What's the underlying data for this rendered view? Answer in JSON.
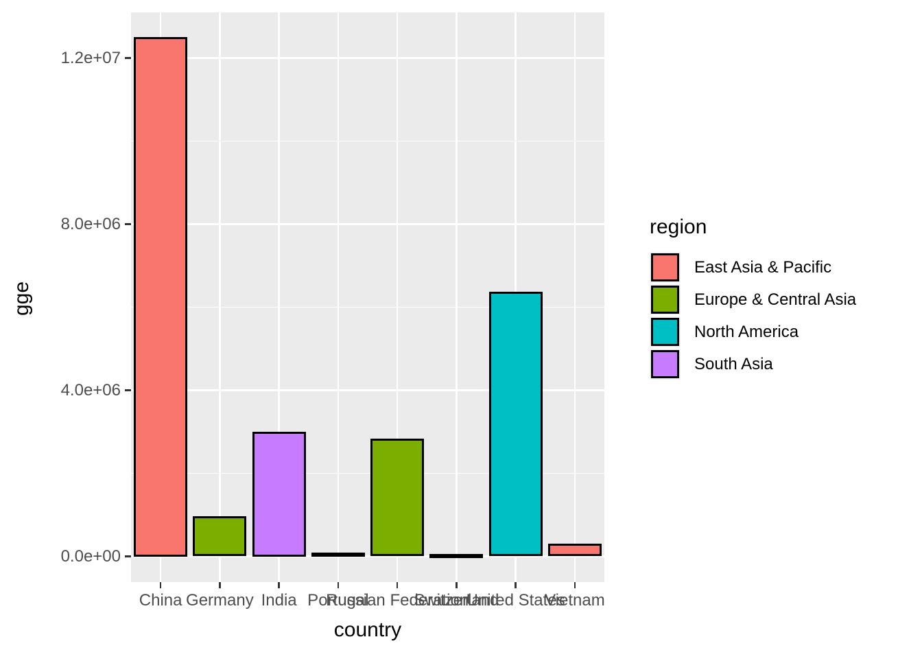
{
  "chart_data": {
    "type": "bar",
    "title": "",
    "xlabel": "country",
    "ylabel": "gge",
    "categories": [
      "China",
      "Germany",
      "India",
      "Portugal",
      "Russian Federation",
      "Switzerland",
      "United States",
      "Vietnam"
    ],
    "values": [
      12500000,
      960000,
      3000000,
      90000,
      2830000,
      55000,
      6380000,
      300000
    ],
    "bar_regions": [
      "East Asia & Pacific",
      "Europe & Central Asia",
      "South Asia",
      "Europe & Central Asia",
      "Europe & Central Asia",
      "Europe & Central Asia",
      "North America",
      "East Asia & Pacific"
    ],
    "region_colors": {
      "East Asia & Pacific": "#F8766D",
      "Europe & Central Asia": "#7CAE00",
      "North America": "#00BFC4",
      "South Asia": "#C77CFF"
    },
    "y_axis": {
      "ticks": [
        {
          "value": 0,
          "label": "0.0e+00"
        },
        {
          "value": 4000000,
          "label": "4.0e+06"
        },
        {
          "value": 8000000,
          "label": "8.0e+06"
        },
        {
          "value": 12000000,
          "label": "1.2e+07"
        }
      ],
      "minor_ticks": [
        2000000,
        6000000,
        10000000
      ],
      "range": [
        -620000,
        13110000
      ],
      "grid": true
    },
    "legend": {
      "title": "region",
      "position": "right",
      "entries": [
        {
          "label": "East Asia & Pacific",
          "color": "#F8766D"
        },
        {
          "label": "Europe & Central Asia",
          "color": "#7CAE00"
        },
        {
          "label": "North America",
          "color": "#00BFC4"
        },
        {
          "label": "South Asia",
          "color": "#C77CFF"
        }
      ]
    },
    "style": {
      "panel_bg": "#EBEBEB",
      "grid_color": "#FFFFFF",
      "bar_outline": "#000000",
      "axis_text_color": "#4D4D4D",
      "axis_title_color": "#000000",
      "tick_color": "#333333",
      "background": "#FFFFFF"
    }
  }
}
